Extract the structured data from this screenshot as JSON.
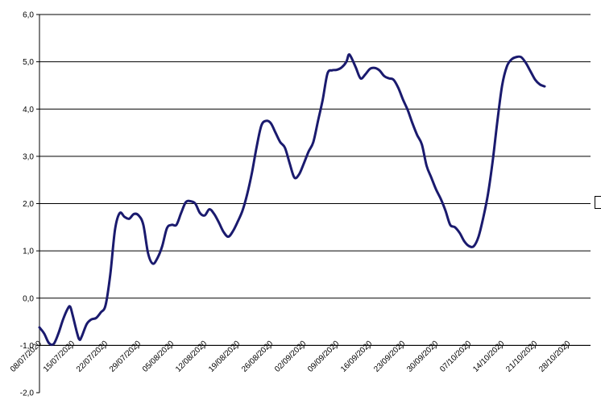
{
  "chart_data": {
    "type": "line",
    "title": "",
    "xlabel": "",
    "ylabel": "",
    "ylim": [
      -2,
      6
    ],
    "y_ticks": [
      "-2,0",
      "-1,0",
      "0,0",
      "1,0",
      "2,0",
      "3,0",
      "4,0",
      "5,0",
      "6,0"
    ],
    "x_ticks": [
      "08/07/2020",
      "15/07/2020",
      "22/07/2020",
      "29/07/2020",
      "05/08/2020",
      "12/08/2020",
      "19/08/2020",
      "26/08/2020",
      "02/09/2020",
      "09/09/2020",
      "16/09/2020",
      "23/09/2020",
      "30/09/2020",
      "07/10/2020",
      "14/10/2020",
      "21/10/2020",
      "28/10/2020"
    ],
    "x_range_days": [
      0,
      117
    ],
    "grid": "horizontal",
    "line_color": "#1a1a6e",
    "series": [
      {
        "values_by_day": [
          [
            0,
            -0.62
          ],
          [
            1,
            -0.75
          ],
          [
            2,
            -0.95
          ],
          [
            3,
            -0.97
          ],
          [
            4,
            -0.75
          ],
          [
            5,
            -0.45
          ],
          [
            6,
            -0.22
          ],
          [
            6.5,
            -0.18
          ],
          [
            7,
            -0.35
          ],
          [
            8,
            -0.75
          ],
          [
            8.5,
            -0.88
          ],
          [
            9,
            -0.8
          ],
          [
            10,
            -0.55
          ],
          [
            11,
            -0.45
          ],
          [
            12,
            -0.42
          ],
          [
            13,
            -0.3
          ],
          [
            14,
            -0.15
          ],
          [
            15,
            0.5
          ],
          [
            16,
            1.45
          ],
          [
            17,
            1.8
          ],
          [
            18,
            1.72
          ],
          [
            19,
            1.68
          ],
          [
            20,
            1.78
          ],
          [
            21,
            1.75
          ],
          [
            22,
            1.55
          ],
          [
            23,
            0.95
          ],
          [
            24,
            0.73
          ],
          [
            25,
            0.85
          ],
          [
            26,
            1.1
          ],
          [
            27,
            1.48
          ],
          [
            28,
            1.55
          ],
          [
            29,
            1.55
          ],
          [
            30,
            1.8
          ],
          [
            31,
            2.03
          ],
          [
            32,
            2.05
          ],
          [
            33,
            2.0
          ],
          [
            34,
            1.8
          ],
          [
            35,
            1.75
          ],
          [
            36,
            1.88
          ],
          [
            37,
            1.78
          ],
          [
            38,
            1.6
          ],
          [
            39,
            1.4
          ],
          [
            40,
            1.3
          ],
          [
            41,
            1.42
          ],
          [
            42,
            1.62
          ],
          [
            43,
            1.85
          ],
          [
            44,
            2.2
          ],
          [
            45,
            2.65
          ],
          [
            46,
            3.2
          ],
          [
            47,
            3.65
          ],
          [
            48,
            3.75
          ],
          [
            49,
            3.7
          ],
          [
            50,
            3.5
          ],
          [
            51,
            3.3
          ],
          [
            52,
            3.18
          ],
          [
            53,
            2.85
          ],
          [
            54,
            2.55
          ],
          [
            55,
            2.62
          ],
          [
            56,
            2.85
          ],
          [
            57,
            3.1
          ],
          [
            58,
            3.3
          ],
          [
            59,
            3.75
          ],
          [
            60,
            4.2
          ],
          [
            61,
            4.75
          ],
          [
            62,
            4.82
          ],
          [
            63,
            4.83
          ],
          [
            64,
            4.88
          ],
          [
            65,
            5.0
          ],
          [
            65.5,
            5.15
          ],
          [
            66,
            5.1
          ],
          [
            67,
            4.88
          ],
          [
            68,
            4.65
          ],
          [
            69,
            4.73
          ],
          [
            70,
            4.85
          ],
          [
            71,
            4.87
          ],
          [
            72,
            4.82
          ],
          [
            73,
            4.7
          ],
          [
            74,
            4.65
          ],
          [
            75,
            4.62
          ],
          [
            76,
            4.45
          ],
          [
            77,
            4.2
          ],
          [
            78,
            3.98
          ],
          [
            79,
            3.7
          ],
          [
            80,
            3.45
          ],
          [
            81,
            3.25
          ],
          [
            82,
            2.8
          ],
          [
            83,
            2.55
          ],
          [
            84,
            2.3
          ],
          [
            85,
            2.1
          ],
          [
            86,
            1.85
          ],
          [
            87,
            1.55
          ],
          [
            88,
            1.5
          ],
          [
            89,
            1.38
          ],
          [
            90,
            1.2
          ],
          [
            91,
            1.1
          ],
          [
            92,
            1.1
          ],
          [
            93,
            1.3
          ],
          [
            94,
            1.7
          ],
          [
            95,
            2.2
          ],
          [
            96,
            2.9
          ],
          [
            97,
            3.75
          ],
          [
            98,
            4.5
          ],
          [
            99,
            4.9
          ],
          [
            100,
            5.05
          ],
          [
            101,
            5.1
          ],
          [
            102,
            5.1
          ],
          [
            103,
            4.98
          ],
          [
            104,
            4.8
          ],
          [
            105,
            4.62
          ],
          [
            106,
            4.52
          ],
          [
            107,
            4.48
          ]
        ]
      }
    ]
  }
}
